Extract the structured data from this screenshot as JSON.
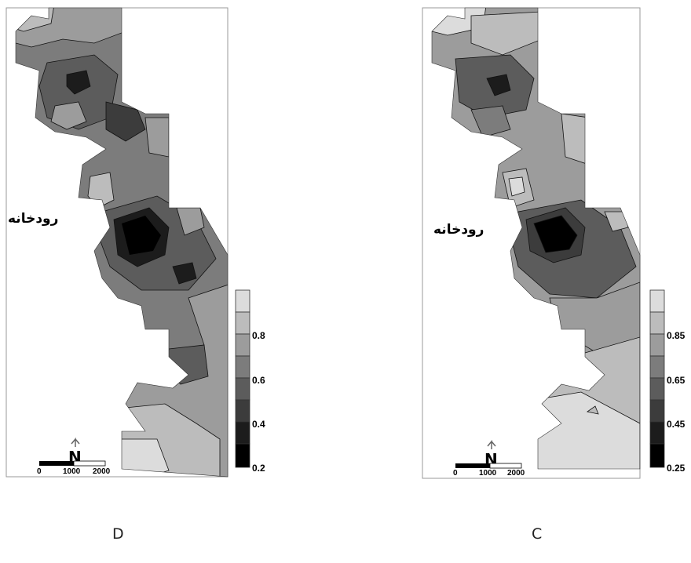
{
  "panels": [
    {
      "id": "D",
      "label": "D",
      "river_label": "رودخانه",
      "north_label": "N",
      "scale_bar": [
        "0",
        "1000",
        "2000"
      ],
      "legend": {
        "ticks": [
          "0.8",
          "0.6",
          "0.4",
          "0.2"
        ],
        "classes": [
          "#dcdcdc",
          "#bcbcbc",
          "#9c9c9c",
          "#7c7c7c",
          "#5c5c5c",
          "#3c3c3c",
          "#1c1c1c",
          "#000000"
        ]
      }
    },
    {
      "id": "C",
      "label": "C",
      "river_label": "رودخانه",
      "north_label": "N",
      "scale_bar": [
        "0",
        "1000",
        "2000"
      ],
      "legend": {
        "ticks": [
          "0.85",
          "0.65",
          "0.45",
          "0.25"
        ],
        "classes": [
          "#dcdcdc",
          "#bcbcbc",
          "#9c9c9c",
          "#7c7c7c",
          "#5c5c5c",
          "#3c3c3c",
          "#1c1c1c",
          "#000000"
        ]
      }
    }
  ]
}
